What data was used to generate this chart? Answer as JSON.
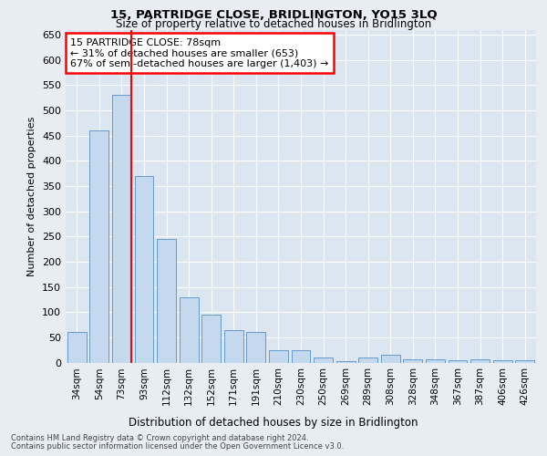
{
  "title": "15, PARTRIDGE CLOSE, BRIDLINGTON, YO15 3LQ",
  "subtitle": "Size of property relative to detached houses in Bridlington",
  "xlabel": "Distribution of detached houses by size in Bridlington",
  "ylabel": "Number of detached properties",
  "categories": [
    "34sqm",
    "54sqm",
    "73sqm",
    "93sqm",
    "112sqm",
    "132sqm",
    "152sqm",
    "171sqm",
    "191sqm",
    "210sqm",
    "230sqm",
    "250sqm",
    "269sqm",
    "289sqm",
    "308sqm",
    "328sqm",
    "348sqm",
    "367sqm",
    "387sqm",
    "406sqm",
    "426sqm"
  ],
  "values": [
    60,
    460,
    530,
    370,
    245,
    130,
    95,
    65,
    60,
    25,
    25,
    10,
    2,
    10,
    15,
    7,
    7,
    5,
    7,
    5,
    5
  ],
  "bar_color": "#c5d9ee",
  "bar_edge_color": "#6699cc",
  "red_line_index": 2,
  "annotation_text": "15 PARTRIDGE CLOSE: 78sqm\n← 31% of detached houses are smaller (653)\n67% of semi-detached houses are larger (1,403) →",
  "ylim": [
    0,
    660
  ],
  "yticks": [
    0,
    50,
    100,
    150,
    200,
    250,
    300,
    350,
    400,
    450,
    500,
    550,
    600,
    650
  ],
  "footer_line1": "Contains HM Land Registry data © Crown copyright and database right 2024.",
  "footer_line2": "Contains public sector information licensed under the Open Government Licence v3.0.",
  "background_color": "#e8edf4",
  "plot_background": "#dce6f1"
}
